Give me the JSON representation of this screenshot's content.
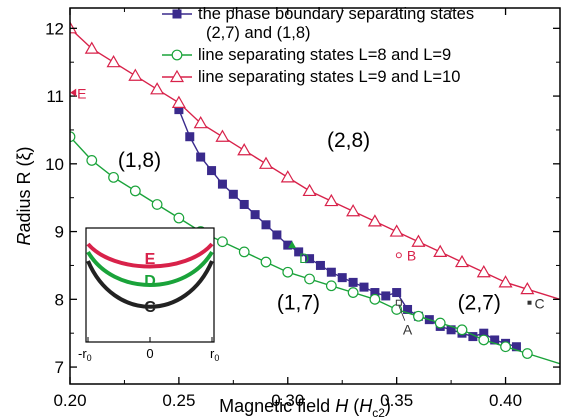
{
  "chart_data": {
    "type": "line",
    "xlabel": "Magnetic field H (H",
    "xlabel_sub": "c2",
    "xlabel_close": ")",
    "ylabel": "Radius R (ξ)",
    "xlim": [
      0.2,
      0.425
    ],
    "ylim": [
      6.75,
      12.3
    ],
    "xticks": [
      "0.20",
      "0.25",
      "0.30",
      "0.35",
      "0.40"
    ],
    "yticks": [
      "7",
      "8",
      "9",
      "10",
      "11",
      "12"
    ],
    "legend_position": "top-right",
    "colors": {
      "phase_boundary": "#3a2a8c",
      "line_8_9": "#1aa33a",
      "line_9_10": "#d8224a"
    },
    "series": [
      {
        "name": "the phase boundary separating states",
        "name_line2": "(2,7) and (1,8)",
        "marker": "filled-square",
        "x": [
          0.25,
          0.255,
          0.26,
          0.265,
          0.27,
          0.275,
          0.28,
          0.285,
          0.29,
          0.295,
          0.3,
          0.305,
          0.31,
          0.315,
          0.32,
          0.325,
          0.33,
          0.335,
          0.34,
          0.345,
          0.35,
          0.355,
          0.36,
          0.365,
          0.37,
          0.375,
          0.38,
          0.385,
          0.39,
          0.395,
          0.4,
          0.405
        ],
        "y": [
          10.8,
          10.4,
          10.1,
          9.9,
          9.7,
          9.55,
          9.4,
          9.25,
          9.1,
          8.95,
          8.8,
          8.7,
          8.6,
          8.5,
          8.4,
          8.32,
          8.25,
          8.18,
          8.1,
          8.05,
          8.1,
          7.85,
          7.75,
          7.7,
          7.6,
          7.55,
          7.5,
          7.45,
          7.5,
          7.4,
          7.35,
          7.3
        ]
      },
      {
        "name": "line  separating states L=8 and L=9",
        "marker": "open-circle",
        "x": [
          0.2,
          0.21,
          0.22,
          0.23,
          0.24,
          0.25,
          0.26,
          0.27,
          0.28,
          0.29,
          0.3,
          0.31,
          0.32,
          0.33,
          0.34,
          0.35,
          0.36,
          0.37,
          0.38,
          0.39,
          0.4,
          0.41
        ],
        "y": [
          10.4,
          10.05,
          9.8,
          9.6,
          9.4,
          9.2,
          9.0,
          8.85,
          8.7,
          8.55,
          8.4,
          8.3,
          8.2,
          8.1,
          8.0,
          7.85,
          7.75,
          7.65,
          7.55,
          7.4,
          7.3,
          7.2
        ]
      },
      {
        "name": "line  separating states L=9 and L=10",
        "marker": "open-triangle",
        "x": [
          0.2,
          0.21,
          0.22,
          0.23,
          0.24,
          0.25,
          0.26,
          0.27,
          0.28,
          0.29,
          0.3,
          0.31,
          0.32,
          0.33,
          0.34,
          0.35,
          0.36,
          0.37,
          0.38,
          0.39,
          0.4,
          0.41
        ],
        "y": [
          12.0,
          11.7,
          11.5,
          11.3,
          11.1,
          10.9,
          10.6,
          10.4,
          10.2,
          10.0,
          9.8,
          9.6,
          9.45,
          9.3,
          9.15,
          9.0,
          8.85,
          8.7,
          8.55,
          8.4,
          8.25,
          8.15
        ]
      }
    ],
    "regions": [
      {
        "label": "(1,8)",
        "x": 0.222,
        "y": 9.95
      },
      {
        "label": "(2,8)",
        "x": 0.318,
        "y": 10.25
      },
      {
        "label": "(1,7)",
        "x": 0.295,
        "y": 7.85
      },
      {
        "label": "(2,7)",
        "x": 0.378,
        "y": 7.85
      }
    ],
    "points": [
      {
        "label": "E",
        "x": 0.201,
        "y": 11.05,
        "color": "#d8224a",
        "marker": "triangle-left"
      },
      {
        "label": "B",
        "x": 0.351,
        "y": 8.65,
        "color": "#d8224a",
        "marker": "open-circle-small"
      },
      {
        "label": "D",
        "x": 0.302,
        "y": 8.8,
        "color": "#1aa33a",
        "marker": "filled-triangle"
      },
      {
        "label": "A",
        "x": 0.351,
        "y": 7.95,
        "color": "#333333",
        "marker": "open-square-small"
      },
      {
        "label": "C",
        "x": 0.411,
        "y": 7.95,
        "color": "#333333",
        "marker": "filled-square-small"
      }
    ],
    "inset": {
      "xtick_left": "-r",
      "xtick_left_sub": "0",
      "xtick_mid": "0",
      "xtick_right": "r",
      "xtick_right_sub": "0",
      "curves": [
        {
          "label": "E",
          "color": "#d8224a"
        },
        {
          "label": "D",
          "color": "#1aa33a"
        },
        {
          "label": "C",
          "color": "#222222"
        }
      ]
    }
  }
}
